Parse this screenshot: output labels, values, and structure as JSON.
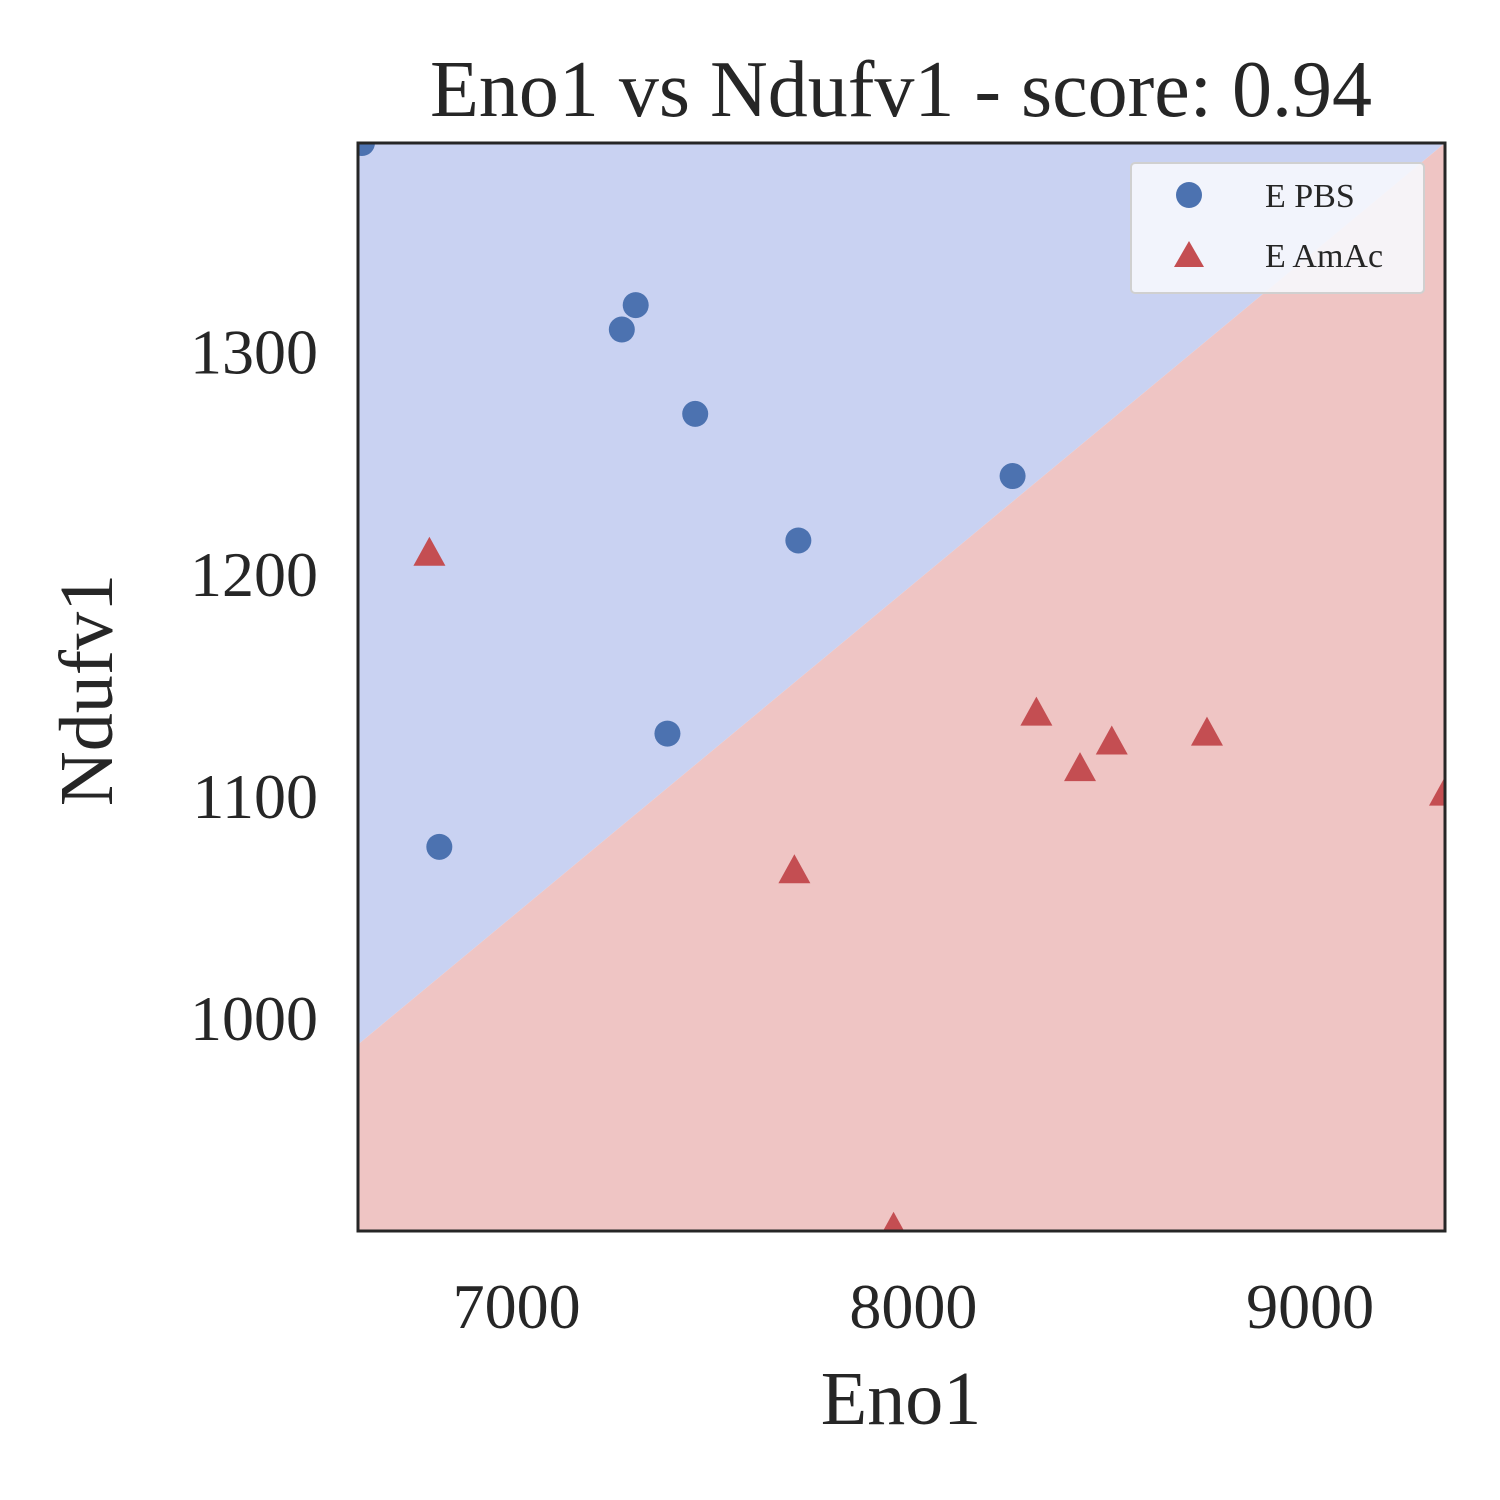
{
  "chart_data": {
    "type": "scatter",
    "title": "Eno1 vs Ndufv1 - score: 0.94",
    "xlabel": "Eno1",
    "ylabel": "Ndufv1",
    "xlim": [
      6600,
      9340
    ],
    "ylim": [
      904,
      1394
    ],
    "xticks": [
      {
        "value": 7000,
        "label": "7000"
      },
      {
        "value": 8000,
        "label": "8000"
      },
      {
        "value": 9000,
        "label": "9000"
      }
    ],
    "yticks": [
      {
        "value": 1000,
        "label": "1000"
      },
      {
        "value": 1100,
        "label": "1100"
      },
      {
        "value": 1200,
        "label": "1200"
      },
      {
        "value": 1300,
        "label": "1300"
      }
    ],
    "grid": false,
    "legend": {
      "placement": "top-right"
    },
    "decision_boundary": {
      "points": [
        [
          6600,
          988
        ],
        [
          9340,
          1394
        ]
      ],
      "upper_region_class": "E PBS",
      "lower_region_class": "E AmAc",
      "upper_color": "#c9d2f2",
      "lower_color": "#efc5c4"
    },
    "series": [
      {
        "name": "E PBS",
        "marker": "circle",
        "color": "#4c72b0",
        "points": [
          [
            6610,
            1394
          ],
          [
            7300,
            1321
          ],
          [
            7265,
            1310
          ],
          [
            7450,
            1272
          ],
          [
            8250,
            1244
          ],
          [
            7710,
            1215
          ],
          [
            7380,
            1128
          ],
          [
            6805,
            1077
          ]
        ]
      },
      {
        "name": "E AmAc",
        "marker": "triangle",
        "color": "#c44e52",
        "points": [
          [
            6780,
            1209
          ],
          [
            8310,
            1137
          ],
          [
            8500,
            1124
          ],
          [
            8420,
            1112
          ],
          [
            8740,
            1128
          ],
          [
            9340,
            1101
          ],
          [
            7700,
            1066
          ],
          [
            7950,
            905
          ]
        ]
      }
    ]
  }
}
